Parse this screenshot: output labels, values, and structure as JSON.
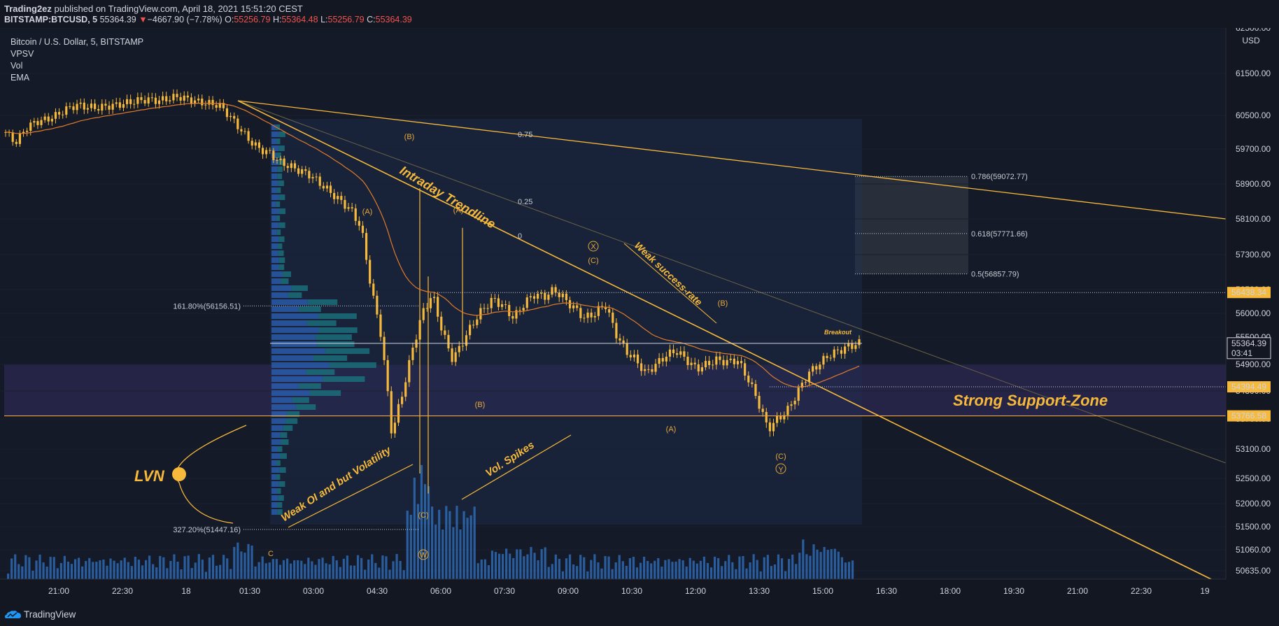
{
  "header": {
    "publisher": "Trading2ez",
    "published_text": "published on TradingView.com, April 18, 2021 15:51:20 CEST",
    "symbol": "BITSTAMP:BTCUSD, 5",
    "last": "55364.39",
    "change_arrow": "▼",
    "change": "−4667.90 (−7.78%)",
    "o_label": "O:",
    "o_value": "55256.79",
    "h_label": "H:",
    "h_value": "55364.48",
    "l_label": "L:",
    "l_value": "55256.79",
    "c_label": "C:",
    "c_value": "55364.39"
  },
  "legend": {
    "title": "Bitcoin / U.S. Dollar, 5, BITSTAMP",
    "indicators": [
      "VPSV",
      "Vol",
      "EMA"
    ]
  },
  "footer": {
    "brand": "TradingView"
  },
  "colors": {
    "background": "#131722",
    "candle": "#f6b93b",
    "annotation": "#f6b93b",
    "ema": "#e07b2a",
    "volume": "#2e6ab3",
    "vp_up": "#1b6d7a",
    "vp_down": "#2a5aa8",
    "support_zone": "#3a2f6b"
  },
  "chart_data": {
    "type": "candlestick",
    "currency": "USD",
    "y_ticks": [
      "62500.00",
      "61500.00",
      "60500.00",
      "59700.00",
      "58900.00",
      "58100.00",
      "57300.00",
      "56500.00",
      "56000.00",
      "55500.00",
      "54900.00",
      "54300.00",
      "53700.00",
      "53100.00",
      "52500.00",
      "52000.00",
      "51500.00",
      "51060.00",
      "50635.00"
    ],
    "x_ticks": [
      "21:00",
      "22:30",
      "18",
      "01:30",
      "03:00",
      "04:30",
      "06:00",
      "07:30",
      "09:00",
      "10:30",
      "12:00",
      "13:30",
      "15:00",
      "16:30",
      "18:00",
      "19:30",
      "21:00",
      "22:30",
      "19"
    ],
    "price_labels": [
      {
        "text": "56438.34",
        "value": 56438.34
      },
      {
        "text": "55364.39",
        "value": 55364.39,
        "sub": "03:41",
        "current": true
      },
      {
        "text": "54394.49",
        "value": 54394.49
      },
      {
        "text": "53766.58",
        "value": 53766.58
      }
    ],
    "approx_closes": [
      60100,
      59850,
      60200,
      60350,
      60400,
      60500,
      60650,
      60750,
      60700,
      60680,
      60720,
      60750,
      60800,
      60850,
      60880,
      60850,
      60900,
      60950,
      60880,
      60820,
      60780,
      60750,
      60500,
      60200,
      59900,
      59700,
      59600,
      59400,
      59300,
      59200,
      59100,
      58900,
      58700,
      58500,
      58300,
      57900,
      56500,
      55500,
      53400,
      54200,
      55200,
      56000,
      56400,
      55600,
      55000,
      55400,
      55800,
      56100,
      56300,
      56150,
      55900,
      56200,
      56400,
      56350,
      56500,
      56300,
      56100,
      55900,
      56000,
      56200,
      55600,
      55200,
      55000,
      54700,
      54900,
      55100,
      55200,
      55000,
      54800,
      54900,
      55000,
      54950,
      55000,
      54600,
      54100,
      53500,
      53700,
      53900,
      54300,
      54700,
      54900,
      55100,
      55200,
      55300,
      55364
    ],
    "fib_levels": [
      {
        "text": "0.786(59072.77)",
        "value": 59072.77
      },
      {
        "text": "0.618(57771.66)",
        "value": 57771.66
      },
      {
        "text": "0.5(56857.79)",
        "value": 56857.79
      }
    ],
    "fib_ext": [
      {
        "text": "161.80%(56156.51)",
        "value": 56156.51
      },
      {
        "text": "327.20%(51447.16)",
        "value": 51447.16
      }
    ],
    "channel_labels": [
      "0.75",
      "0.25",
      "0"
    ],
    "wave_labels": [
      "(B)",
      "(A)",
      "(A)",
      "(C)",
      "(B)",
      "(B)",
      "(A)",
      "(C)",
      "C",
      "(C)",
      "W",
      "X",
      "Y"
    ],
    "annotations": {
      "trendline": "Intraday Trendline",
      "weak_success": "Weak success-rate",
      "breakout": "Breakout",
      "support": "Strong Support-Zone",
      "lvn": "LVN",
      "weak_oi": "Weak OI and but Volatility",
      "vol_spikes": "Vol. Spikes"
    }
  }
}
